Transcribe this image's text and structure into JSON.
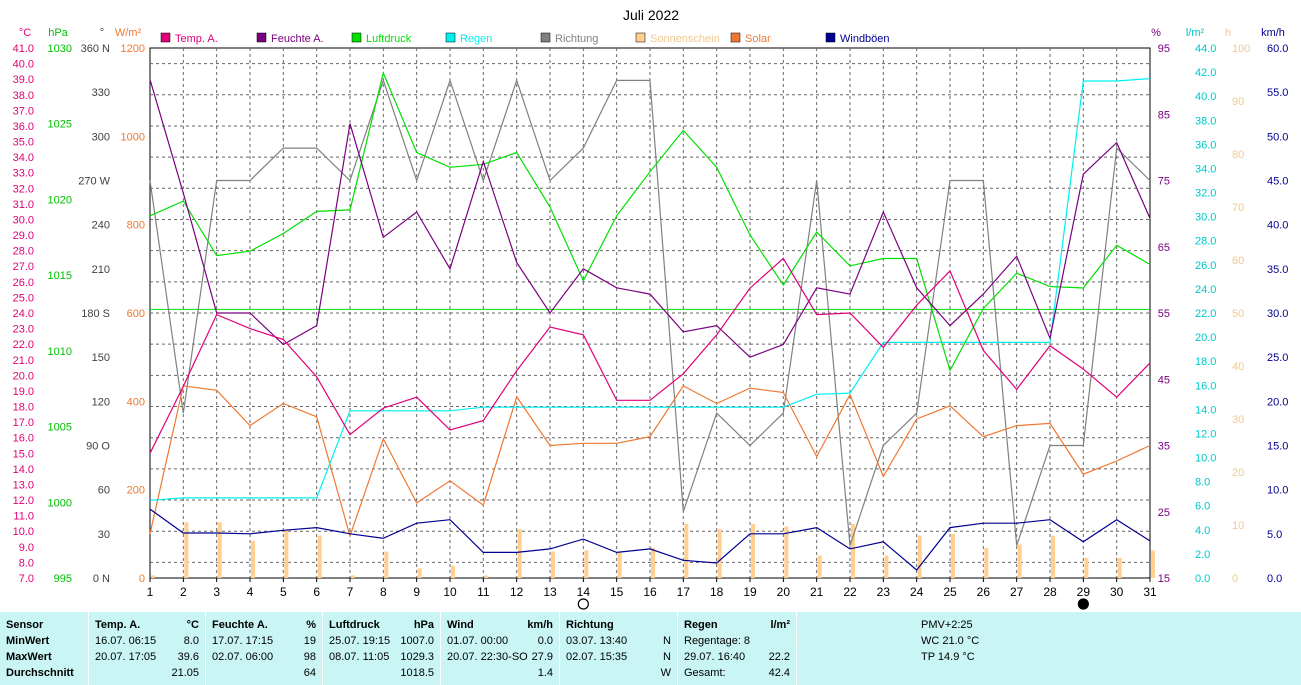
{
  "chart_data": {
    "type": "line",
    "title": "Juli 2022",
    "x": [
      1,
      2,
      3,
      4,
      5,
      6,
      7,
      8,
      9,
      10,
      11,
      12,
      13,
      14,
      15,
      16,
      17,
      18,
      19,
      20,
      21,
      22,
      23,
      24,
      25,
      26,
      27,
      28,
      29,
      30,
      31
    ],
    "x_range": [
      1,
      31
    ],
    "axes": {
      "temp": {
        "unit": "°C",
        "range": [
          7.0,
          41.0
        ],
        "ticks": [
          "7.0",
          "8.0",
          "9.0",
          "10.0",
          "11.0",
          "12.0",
          "13.0",
          "14.0",
          "15.0",
          "16.0",
          "17.0",
          "18.0",
          "19.0",
          "20.0",
          "21.0",
          "22.0",
          "23.0",
          "24.0",
          "25.0",
          "26.0",
          "27.0",
          "28.0",
          "29.0",
          "30.0",
          "31.0",
          "32.0",
          "33.0",
          "34.0",
          "35.0",
          "36.0",
          "37.0",
          "38.0",
          "39.0",
          "40.0",
          "41.0"
        ]
      },
      "pressure": {
        "unit": "hPa",
        "range": [
          995,
          1031
        ],
        "ticks": [
          "995",
          "1000",
          "1005",
          "1010",
          "1015",
          "1020",
          "1025",
          "1030"
        ]
      },
      "direction": {
        "unit": "°",
        "range": [
          0,
          360
        ],
        "ticks": [
          "0 N",
          "30",
          "60",
          "90 O",
          "120",
          "150",
          "180 S",
          "210",
          "240",
          "270 W",
          "300",
          "330",
          "360 N"
        ]
      },
      "solar": {
        "unit": "W/m²",
        "range": [
          0,
          1200
        ],
        "ticks": [
          "0",
          "200",
          "400",
          "600",
          "800",
          "1000",
          "1200"
        ]
      },
      "humidity": {
        "unit": "%",
        "range": [
          15,
          99
        ],
        "ticks": [
          "15",
          "25",
          "35",
          "45",
          "55",
          "65",
          "75",
          "85",
          "95"
        ]
      },
      "rain": {
        "unit": "l/m²",
        "range": [
          0,
          45
        ],
        "ticks": [
          "0.0",
          "2.0",
          "4.0",
          "6.0",
          "8.0",
          "10.0",
          "12.0",
          "14.0",
          "16.0",
          "18.0",
          "20.0",
          "22.0",
          "24.0",
          "26.0",
          "28.0",
          "30.0",
          "32.0",
          "34.0",
          "36.0",
          "38.0",
          "40.0",
          "42.0",
          "44.0"
        ]
      },
      "sunshine": {
        "unit": "h",
        "range": [
          0,
          100
        ],
        "ticks": [
          "0",
          "10",
          "20",
          "30",
          "40",
          "50",
          "60",
          "70",
          "80",
          "90",
          "100"
        ]
      },
      "gust": {
        "unit": "km/h",
        "range": [
          0,
          60
        ],
        "ticks": [
          "0.0",
          "5.0",
          "10.0",
          "15.0",
          "20.0",
          "25.0",
          "30.0",
          "35.0",
          "40.0",
          "45.0",
          "50.0",
          "55.0",
          "60.0"
        ]
      }
    },
    "legend": {
      "placement": "top",
      "items": [
        {
          "label": "Temp. A.",
          "color": "#e0007a"
        },
        {
          "label": "Feuchte A.",
          "color": "#7a0080"
        },
        {
          "label": "Luftdruck",
          "color": "#00e000"
        },
        {
          "label": "Regen",
          "color": "#00f0f0"
        },
        {
          "label": "Richtung",
          "color": "#808080"
        },
        {
          "label": "Sonnenschein",
          "color": "#ffd090"
        },
        {
          "label": "Solar",
          "color": "#f07830"
        },
        {
          "label": "Windböen",
          "color": "#000090"
        }
      ]
    },
    "series": [
      {
        "name": "Temp. A.",
        "axis": "temp",
        "color": "#e0007a",
        "kind": "line",
        "values": [
          15.0,
          19.3,
          23.9,
          23.0,
          22.3,
          19.9,
          16.2,
          17.9,
          18.6,
          16.5,
          17.1,
          20.3,
          23.1,
          22.6,
          18.4,
          18.4,
          20.1,
          22.6,
          25.6,
          27.5,
          23.9,
          24.0,
          21.8,
          24.5,
          26.7,
          21.6,
          19.1,
          21.9,
          20.4,
          18.6,
          20.8
        ]
      },
      {
        "name": "Feuchte A.",
        "axis": "humidity",
        "color": "#7a0080",
        "kind": "line",
        "values": [
          94,
          76,
          57,
          57,
          52,
          55,
          87,
          69,
          73,
          64,
          81,
          65,
          57,
          64,
          61,
          60,
          54,
          55,
          50,
          52,
          61,
          60,
          73,
          61,
          55,
          60,
          66,
          53,
          79,
          84,
          72
        ]
      },
      {
        "name": "Luftdruck",
        "axis": "pressure",
        "color": "#00e000",
        "kind": "line",
        "values": [
          1019.6,
          1020.6,
          1016.9,
          1017.2,
          1018.4,
          1019.9,
          1020.0,
          1029.3,
          1023.9,
          1022.9,
          1023.1,
          1023.9,
          1020.2,
          1015.2,
          1019.6,
          1022.6,
          1025.4,
          1022.9,
          1018.3,
          1014.9,
          1018.5,
          1016.2,
          1016.7,
          1016.7,
          1009.1,
          1013.3,
          1015.7,
          1014.8,
          1014.7,
          1017.6,
          1016.3
        ]
      },
      {
        "name": "Regen",
        "axis": "rain",
        "color": "#00f0f0",
        "kind": "line",
        "values": [
          6.6,
          6.8,
          6.8,
          6.8,
          6.8,
          6.8,
          14.2,
          14.2,
          14.2,
          14.2,
          14.5,
          14.5,
          14.5,
          14.5,
          14.5,
          14.5,
          14.5,
          14.5,
          14.5,
          14.5,
          15.6,
          15.7,
          20.0,
          20.0,
          20.0,
          20.0,
          20.0,
          20.0,
          42.2,
          42.2,
          42.4
        ]
      },
      {
        "name": "Richtung",
        "axis": "direction",
        "color": "#808080",
        "kind": "line",
        "values": [
          270,
          112,
          270,
          270,
          292,
          292,
          270,
          338,
          270,
          338,
          270,
          338,
          270,
          292,
          338,
          338,
          45,
          112,
          90,
          112,
          270,
          22,
          90,
          112,
          270,
          270,
          22,
          90,
          90,
          292,
          270
        ]
      },
      {
        "name": "Solar",
        "axis": "solar",
        "color": "#f07830",
        "kind": "line",
        "values": [
          100,
          435,
          425,
          345,
          395,
          365,
          95,
          315,
          170,
          220,
          165,
          410,
          300,
          305,
          305,
          320,
          435,
          395,
          430,
          420,
          275,
          415,
          230,
          360,
          390,
          320,
          345,
          350,
          235,
          265,
          300
        ]
      },
      {
        "name": "Windböen",
        "axis": "gust",
        "color": "#000090",
        "kind": "line",
        "values": [
          7.8,
          5.1,
          5.1,
          5.0,
          5.4,
          5.7,
          5.0,
          4.5,
          6.2,
          6.6,
          2.9,
          2.9,
          3.3,
          4.4,
          2.9,
          3.3,
          2.0,
          1.7,
          5.0,
          5.0,
          5.7,
          3.3,
          4.1,
          0.9,
          5.7,
          6.2,
          6.2,
          6.6,
          4.1,
          6.6,
          4.2
        ]
      },
      {
        "name": "Sonnenschein",
        "axis": "sunshine",
        "color": "#ffd090",
        "kind": "bar",
        "values": [
          0.5,
          10.5,
          10.5,
          7.0,
          9.0,
          8.0,
          0.5,
          5.0,
          1.8,
          2.3,
          0.5,
          9.2,
          5.0,
          5.2,
          4.8,
          5.7,
          10.2,
          9.2,
          10.2,
          9.7,
          4.2,
          10.2,
          4.2,
          8.0,
          8.3,
          5.7,
          6.3,
          8.0,
          3.8,
          3.8,
          5.2
        ]
      }
    ],
    "reference_lines": [
      {
        "axis": "pressure",
        "value": 1013.25,
        "color": "#00e000"
      }
    ],
    "moon_markers": [
      {
        "day": 14,
        "type": "open"
      },
      {
        "day": 29,
        "type": "filled"
      }
    ],
    "grid": true
  },
  "stats": {
    "sensor": {
      "title": "Sensor",
      "rows": [
        "MinWert",
        "MaxWert",
        "Durchschnitt"
      ]
    },
    "temp": {
      "title": "Temp. A.",
      "unit": "°C",
      "rows": [
        [
          "16.07.  06:15",
          "8.0"
        ],
        [
          "20.07.  17:05",
          "39.6"
        ],
        [
          "",
          "21.05"
        ]
      ]
    },
    "humidity": {
      "title": "Feuchte A.",
      "unit": "%",
      "rows": [
        [
          "17.07.  17:15",
          "19"
        ],
        [
          "02.07.  06:00",
          "98"
        ],
        [
          "",
          "64"
        ]
      ]
    },
    "pressure": {
      "title": "Luftdruck",
      "unit": "hPa",
      "rows": [
        [
          "25.07.  19:15",
          "1007.0"
        ],
        [
          "08.07.  11:05",
          "1029.3"
        ],
        [
          "",
          "1018.5"
        ]
      ]
    },
    "wind": {
      "title": "Wind",
      "unit": "km/h",
      "rows": [
        [
          "01.07.  00:00",
          "0.0"
        ],
        [
          "20.07.  22:30-SO",
          "27.9"
        ],
        [
          "",
          "1.4"
        ]
      ]
    },
    "direction": {
      "title": "Richtung",
      "rows": [
        [
          "03.07.  13:40",
          "N"
        ],
        [
          "02.07.  15:35",
          "N"
        ],
        [
          "",
          "W"
        ]
      ]
    },
    "rain": {
      "title": "Regen",
      "unit": "l/m²",
      "rows": [
        [
          "Regentage: 8",
          ""
        ],
        [
          "29.07.  16:40",
          "22.2"
        ],
        [
          "Gesamt:",
          "42.4"
        ]
      ]
    },
    "pmv": {
      "title": "PMV+2:25",
      "rows": [
        "WC 21.0 °C",
        "TP 14.9 °C"
      ]
    }
  }
}
